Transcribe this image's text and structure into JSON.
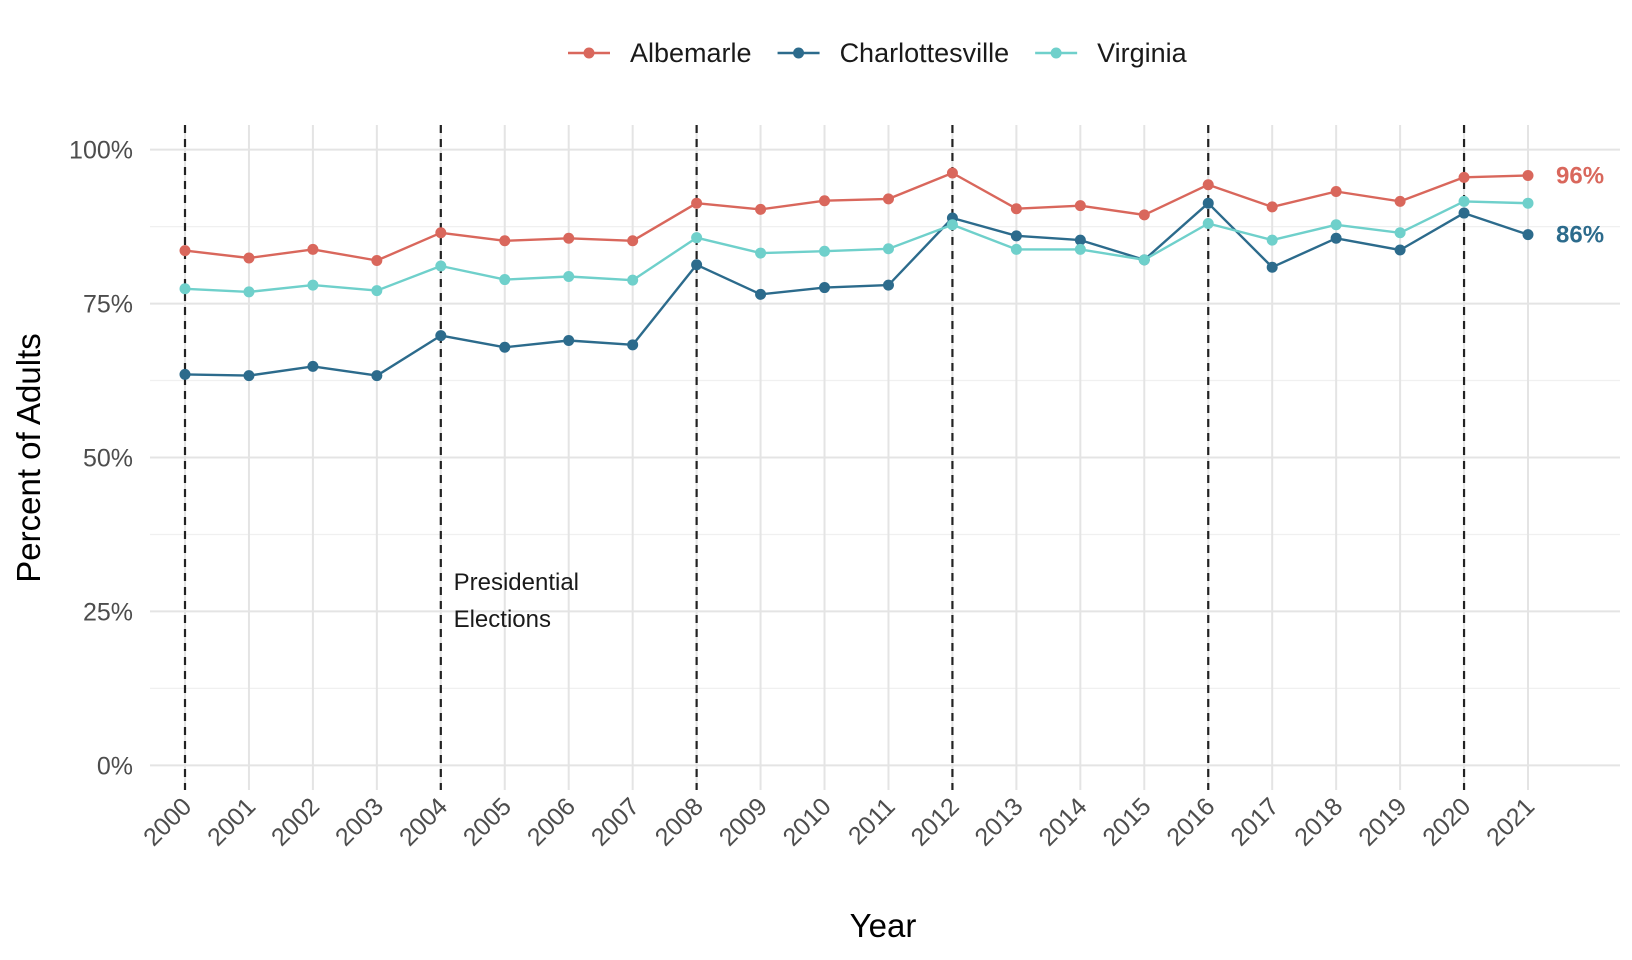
{
  "chart_data": {
    "type": "line",
    "x": [
      2000,
      2001,
      2002,
      2003,
      2004,
      2005,
      2006,
      2007,
      2008,
      2009,
      2010,
      2011,
      2012,
      2013,
      2014,
      2015,
      2016,
      2017,
      2018,
      2019,
      2020,
      2021
    ],
    "series": [
      {
        "name": "Albemarle",
        "color": "#d9675c",
        "values": [
          83.6,
          82.4,
          83.8,
          82.0,
          86.5,
          85.2,
          85.6,
          85.2,
          91.3,
          90.3,
          91.7,
          92.0,
          96.2,
          90.4,
          90.9,
          89.4,
          94.3,
          90.7,
          93.2,
          91.6,
          95.5,
          95.8
        ]
      },
      {
        "name": "Charlottesville",
        "color": "#2c6b8c",
        "values": [
          63.5,
          63.3,
          64.8,
          63.3,
          69.8,
          67.9,
          69.0,
          68.3,
          81.3,
          76.5,
          77.6,
          78.0,
          88.9,
          86.0,
          85.3,
          82.1,
          91.3,
          80.9,
          85.6,
          83.7,
          89.7,
          86.2
        ]
      },
      {
        "name": "Virginia",
        "color": "#6fd0cb",
        "values": [
          77.4,
          76.9,
          78.0,
          77.1,
          81.1,
          78.9,
          79.4,
          78.8,
          85.7,
          83.2,
          83.5,
          83.9,
          87.8,
          83.8,
          83.8,
          82.1,
          88.0,
          85.3,
          87.8,
          86.5,
          91.6,
          91.3
        ]
      }
    ],
    "xlabel": "Year",
    "ylabel": "Percent of Adults",
    "ylim": [
      -4,
      104
    ],
    "yticks": [
      0,
      25,
      50,
      75,
      100
    ],
    "yticklabels": [
      "0%",
      "25%",
      "50%",
      "75%",
      "100%"
    ],
    "vlines": [
      2000,
      2004,
      2008,
      2012,
      2016,
      2020
    ],
    "annotation": {
      "lines": [
        "Presidential",
        "Elections"
      ],
      "x": 2004.2,
      "y": 28.5
    },
    "end_labels": [
      {
        "text": "96%",
        "series": "Albemarle",
        "color": "#d9675c"
      },
      {
        "text": "86%",
        "series": "Charlottesville",
        "color": "#2c6b8c"
      }
    ],
    "legend_position": "top",
    "grid": true
  }
}
